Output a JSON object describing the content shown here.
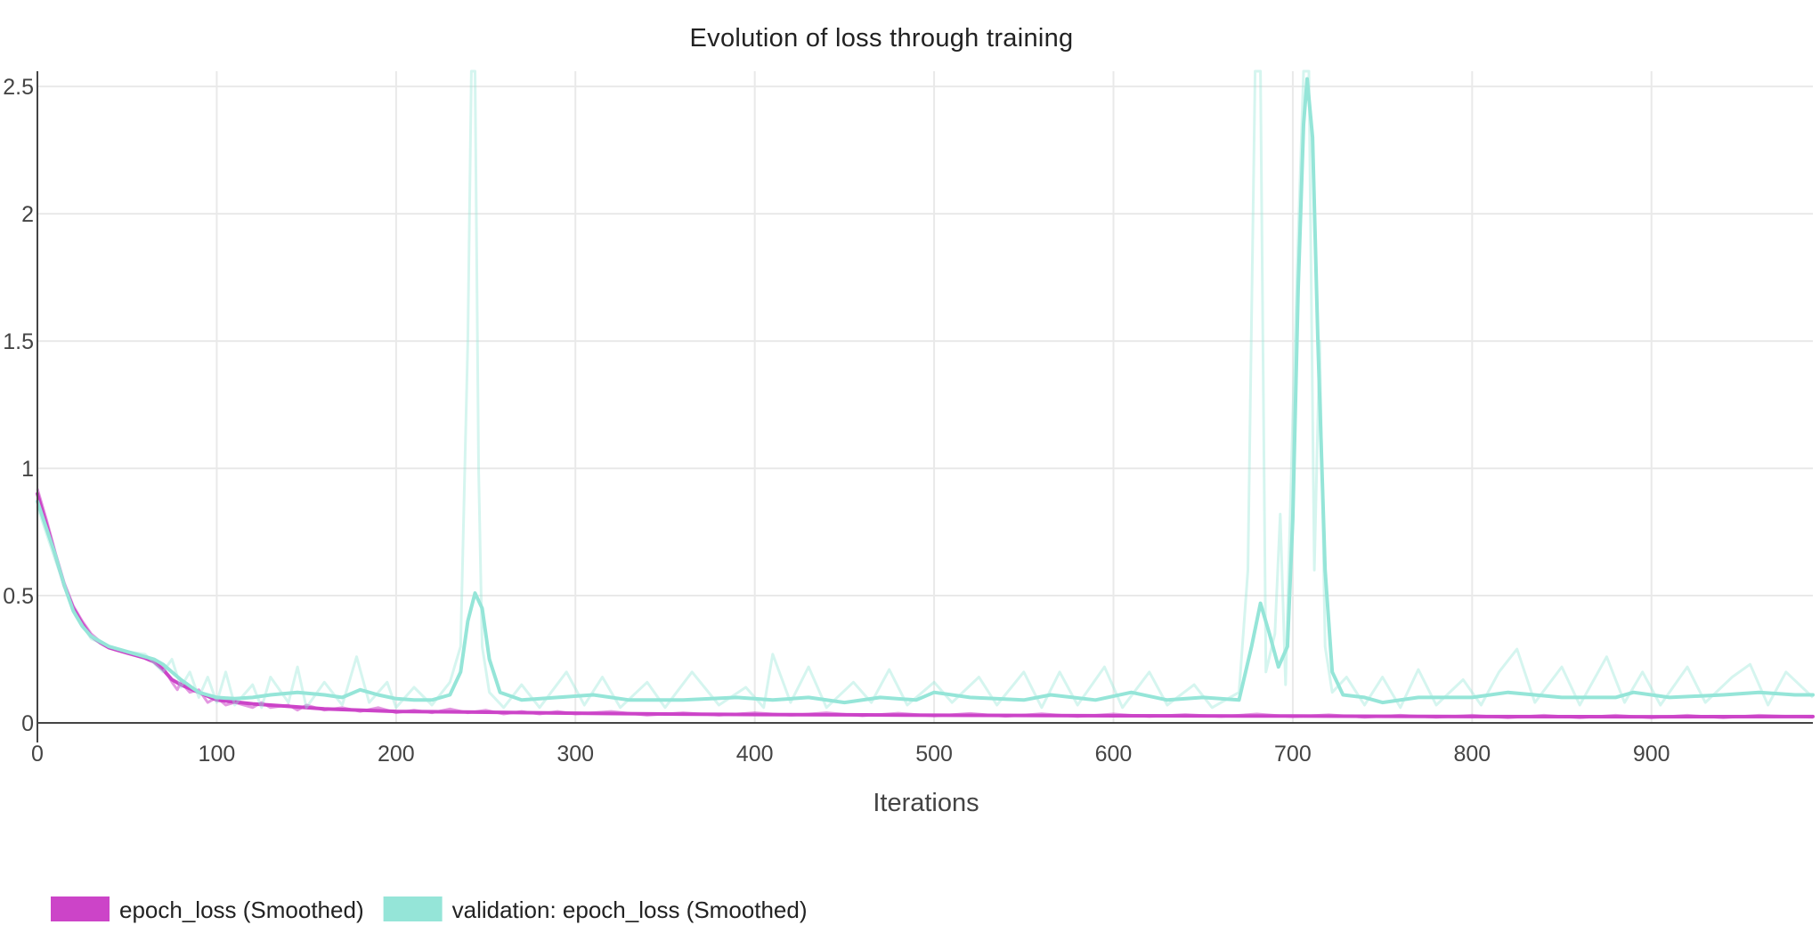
{
  "chart_data": {
    "type": "line",
    "title": "Evolution of loss through training",
    "xlabel": "Iterations",
    "ylabel": "",
    "xlim": [
      0,
      990
    ],
    "ylim": [
      0,
      2.56
    ],
    "x_ticks": [
      0,
      100,
      200,
      300,
      400,
      500,
      600,
      700,
      800,
      900
    ],
    "x_tick_labels": [
      "0",
      "100",
      "200",
      "300",
      "400",
      "500",
      "600",
      "700",
      "800",
      "900"
    ],
    "y_ticks": [
      0,
      0.5,
      1,
      1.5,
      2,
      2.5
    ],
    "y_tick_labels": [
      "0",
      "0.5",
      "1",
      "1.5",
      "2",
      "2.5"
    ],
    "grid": true,
    "legend_position": "bottom-left",
    "series": [
      {
        "name": "epoch_loss (Smoothed)",
        "color": "#cc44c8",
        "raw_opacity": 0.55,
        "smoothed": [
          [
            0,
            0.9
          ],
          [
            5,
            0.78
          ],
          [
            10,
            0.66
          ],
          [
            15,
            0.54
          ],
          [
            20,
            0.45
          ],
          [
            25,
            0.39
          ],
          [
            30,
            0.34
          ],
          [
            35,
            0.315
          ],
          [
            40,
            0.295
          ],
          [
            50,
            0.275
          ],
          [
            60,
            0.255
          ],
          [
            65,
            0.24
          ],
          [
            70,
            0.21
          ],
          [
            75,
            0.17
          ],
          [
            80,
            0.15
          ],
          [
            90,
            0.12
          ],
          [
            100,
            0.09
          ],
          [
            120,
            0.075
          ],
          [
            140,
            0.065
          ],
          [
            160,
            0.055
          ],
          [
            200,
            0.045
          ],
          [
            250,
            0.042
          ],
          [
            300,
            0.038
          ],
          [
            350,
            0.035
          ],
          [
            400,
            0.033
          ],
          [
            450,
            0.032
          ],
          [
            500,
            0.03
          ],
          [
            600,
            0.028
          ],
          [
            700,
            0.027
          ],
          [
            800,
            0.025
          ],
          [
            900,
            0.024
          ],
          [
            990,
            0.025
          ]
        ],
        "raw": [
          [
            0,
            0.92
          ],
          [
            5,
            0.8
          ],
          [
            10,
            0.67
          ],
          [
            15,
            0.55
          ],
          [
            20,
            0.46
          ],
          [
            25,
            0.4
          ],
          [
            30,
            0.35
          ],
          [
            35,
            0.32
          ],
          [
            40,
            0.3
          ],
          [
            50,
            0.28
          ],
          [
            60,
            0.26
          ],
          [
            65,
            0.25
          ],
          [
            70,
            0.22
          ],
          [
            75,
            0.16
          ],
          [
            78,
            0.13
          ],
          [
            80,
            0.16
          ],
          [
            85,
            0.12
          ],
          [
            90,
            0.13
          ],
          [
            95,
            0.08
          ],
          [
            100,
            0.1
          ],
          [
            105,
            0.07
          ],
          [
            110,
            0.08
          ],
          [
            120,
            0.06
          ],
          [
            125,
            0.08
          ],
          [
            130,
            0.06
          ],
          [
            140,
            0.07
          ],
          [
            145,
            0.05
          ],
          [
            150,
            0.07
          ],
          [
            160,
            0.05
          ],
          [
            170,
            0.06
          ],
          [
            180,
            0.045
          ],
          [
            190,
            0.06
          ],
          [
            200,
            0.04
          ],
          [
            210,
            0.05
          ],
          [
            220,
            0.04
          ],
          [
            230,
            0.055
          ],
          [
            240,
            0.04
          ],
          [
            250,
            0.05
          ],
          [
            260,
            0.035
          ],
          [
            270,
            0.045
          ],
          [
            280,
            0.035
          ],
          [
            290,
            0.045
          ],
          [
            300,
            0.035
          ],
          [
            320,
            0.045
          ],
          [
            340,
            0.03
          ],
          [
            360,
            0.04
          ],
          [
            380,
            0.03
          ],
          [
            400,
            0.04
          ],
          [
            420,
            0.03
          ],
          [
            440,
            0.04
          ],
          [
            460,
            0.028
          ],
          [
            480,
            0.038
          ],
          [
            500,
            0.027
          ],
          [
            520,
            0.037
          ],
          [
            540,
            0.026
          ],
          [
            560,
            0.036
          ],
          [
            580,
            0.025
          ],
          [
            600,
            0.035
          ],
          [
            620,
            0.025
          ],
          [
            640,
            0.033
          ],
          [
            660,
            0.025
          ],
          [
            680,
            0.035
          ],
          [
            700,
            0.024
          ],
          [
            720,
            0.032
          ],
          [
            740,
            0.022
          ],
          [
            760,
            0.03
          ],
          [
            780,
            0.022
          ],
          [
            800,
            0.03
          ],
          [
            820,
            0.02
          ],
          [
            840,
            0.03
          ],
          [
            860,
            0.02
          ],
          [
            880,
            0.03
          ],
          [
            900,
            0.02
          ],
          [
            920,
            0.03
          ],
          [
            940,
            0.02
          ],
          [
            960,
            0.03
          ],
          [
            990,
            0.022
          ]
        ]
      },
      {
        "name": "validation: epoch_loss (Smoothed)",
        "color": "#95e5d8",
        "raw_opacity": 0.4,
        "smoothed": [
          [
            0,
            0.87
          ],
          [
            10,
            0.66
          ],
          [
            15,
            0.54
          ],
          [
            20,
            0.44
          ],
          [
            25,
            0.38
          ],
          [
            30,
            0.34
          ],
          [
            40,
            0.3
          ],
          [
            50,
            0.28
          ],
          [
            65,
            0.25
          ],
          [
            70,
            0.23
          ],
          [
            80,
            0.17
          ],
          [
            90,
            0.12
          ],
          [
            100,
            0.1
          ],
          [
            110,
            0.095
          ],
          [
            120,
            0.1
          ],
          [
            130,
            0.11
          ],
          [
            145,
            0.12
          ],
          [
            160,
            0.11
          ],
          [
            170,
            0.1
          ],
          [
            180,
            0.13
          ],
          [
            190,
            0.11
          ],
          [
            200,
            0.095
          ],
          [
            210,
            0.09
          ],
          [
            220,
            0.09
          ],
          [
            230,
            0.11
          ],
          [
            236,
            0.2
          ],
          [
            240,
            0.4
          ],
          [
            244,
            0.51
          ],
          [
            248,
            0.45
          ],
          [
            252,
            0.25
          ],
          [
            258,
            0.12
          ],
          [
            270,
            0.09
          ],
          [
            290,
            0.1
          ],
          [
            310,
            0.11
          ],
          [
            330,
            0.09
          ],
          [
            360,
            0.09
          ],
          [
            390,
            0.1
          ],
          [
            410,
            0.09
          ],
          [
            430,
            0.1
          ],
          [
            450,
            0.08
          ],
          [
            470,
            0.1
          ],
          [
            490,
            0.09
          ],
          [
            500,
            0.12
          ],
          [
            520,
            0.1
          ],
          [
            550,
            0.09
          ],
          [
            565,
            0.11
          ],
          [
            590,
            0.09
          ],
          [
            610,
            0.12
          ],
          [
            630,
            0.09
          ],
          [
            650,
            0.1
          ],
          [
            670,
            0.09
          ],
          [
            677,
            0.3
          ],
          [
            682,
            0.47
          ],
          [
            687,
            0.35
          ],
          [
            692,
            0.22
          ],
          [
            697,
            0.3
          ],
          [
            700,
            0.8
          ],
          [
            703,
            1.7
          ],
          [
            706,
            2.35
          ],
          [
            708,
            2.53
          ],
          [
            711,
            2.3
          ],
          [
            714,
            1.5
          ],
          [
            718,
            0.6
          ],
          [
            722,
            0.2
          ],
          [
            728,
            0.11
          ],
          [
            740,
            0.1
          ],
          [
            750,
            0.08
          ],
          [
            770,
            0.1
          ],
          [
            800,
            0.1
          ],
          [
            820,
            0.12
          ],
          [
            850,
            0.1
          ],
          [
            880,
            0.1
          ],
          [
            890,
            0.12
          ],
          [
            910,
            0.1
          ],
          [
            940,
            0.11
          ],
          [
            960,
            0.12
          ],
          [
            980,
            0.11
          ],
          [
            990,
            0.11
          ]
        ],
        "raw": [
          [
            0,
            0.85
          ],
          [
            10,
            0.64
          ],
          [
            20,
            0.44
          ],
          [
            30,
            0.33
          ],
          [
            40,
            0.3
          ],
          [
            50,
            0.28
          ],
          [
            60,
            0.27
          ],
          [
            70,
            0.2
          ],
          [
            75,
            0.25
          ],
          [
            80,
            0.14
          ],
          [
            85,
            0.2
          ],
          [
            90,
            0.1
          ],
          [
            95,
            0.18
          ],
          [
            100,
            0.08
          ],
          [
            105,
            0.2
          ],
          [
            110,
            0.07
          ],
          [
            120,
            0.15
          ],
          [
            125,
            0.06
          ],
          [
            130,
            0.18
          ],
          [
            140,
            0.08
          ],
          [
            145,
            0.22
          ],
          [
            150,
            0.06
          ],
          [
            160,
            0.16
          ],
          [
            170,
            0.07
          ],
          [
            178,
            0.26
          ],
          [
            185,
            0.08
          ],
          [
            195,
            0.16
          ],
          [
            200,
            0.06
          ],
          [
            210,
            0.14
          ],
          [
            220,
            0.07
          ],
          [
            230,
            0.16
          ],
          [
            236,
            0.3
          ],
          [
            240,
            1.5
          ],
          [
            242,
            2.6
          ],
          [
            244,
            2.6
          ],
          [
            246,
            1.0
          ],
          [
            248,
            0.3
          ],
          [
            252,
            0.12
          ],
          [
            260,
            0.06
          ],
          [
            270,
            0.15
          ],
          [
            280,
            0.06
          ],
          [
            295,
            0.2
          ],
          [
            305,
            0.07
          ],
          [
            315,
            0.18
          ],
          [
            325,
            0.06
          ],
          [
            340,
            0.16
          ],
          [
            350,
            0.06
          ],
          [
            365,
            0.2
          ],
          [
            380,
            0.07
          ],
          [
            395,
            0.14
          ],
          [
            405,
            0.06
          ],
          [
            410,
            0.27
          ],
          [
            420,
            0.08
          ],
          [
            430,
            0.22
          ],
          [
            440,
            0.06
          ],
          [
            455,
            0.16
          ],
          [
            465,
            0.08
          ],
          [
            475,
            0.21
          ],
          [
            485,
            0.07
          ],
          [
            500,
            0.16
          ],
          [
            510,
            0.08
          ],
          [
            525,
            0.18
          ],
          [
            535,
            0.07
          ],
          [
            550,
            0.2
          ],
          [
            560,
            0.06
          ],
          [
            570,
            0.2
          ],
          [
            580,
            0.07
          ],
          [
            595,
            0.22
          ],
          [
            605,
            0.06
          ],
          [
            620,
            0.2
          ],
          [
            630,
            0.07
          ],
          [
            645,
            0.15
          ],
          [
            655,
            0.06
          ],
          [
            670,
            0.12
          ],
          [
            675,
            0.6
          ],
          [
            679,
            2.6
          ],
          [
            682,
            2.6
          ],
          [
            685,
            0.2
          ],
          [
            690,
            0.35
          ],
          [
            693,
            0.82
          ],
          [
            696,
            0.15
          ],
          [
            700,
            1.2
          ],
          [
            703,
            1.9
          ],
          [
            706,
            2.6
          ],
          [
            709,
            2.6
          ],
          [
            712,
            0.6
          ],
          [
            715,
            1.5
          ],
          [
            718,
            0.3
          ],
          [
            722,
            0.12
          ],
          [
            730,
            0.18
          ],
          [
            740,
            0.07
          ],
          [
            750,
            0.18
          ],
          [
            760,
            0.06
          ],
          [
            770,
            0.21
          ],
          [
            780,
            0.07
          ],
          [
            795,
            0.17
          ],
          [
            805,
            0.07
          ],
          [
            815,
            0.2
          ],
          [
            825,
            0.29
          ],
          [
            835,
            0.08
          ],
          [
            850,
            0.22
          ],
          [
            860,
            0.07
          ],
          [
            875,
            0.26
          ],
          [
            885,
            0.08
          ],
          [
            895,
            0.2
          ],
          [
            905,
            0.07
          ],
          [
            920,
            0.22
          ],
          [
            930,
            0.08
          ],
          [
            945,
            0.18
          ],
          [
            955,
            0.23
          ],
          [
            965,
            0.07
          ],
          [
            975,
            0.2
          ],
          [
            990,
            0.1
          ]
        ]
      }
    ]
  }
}
